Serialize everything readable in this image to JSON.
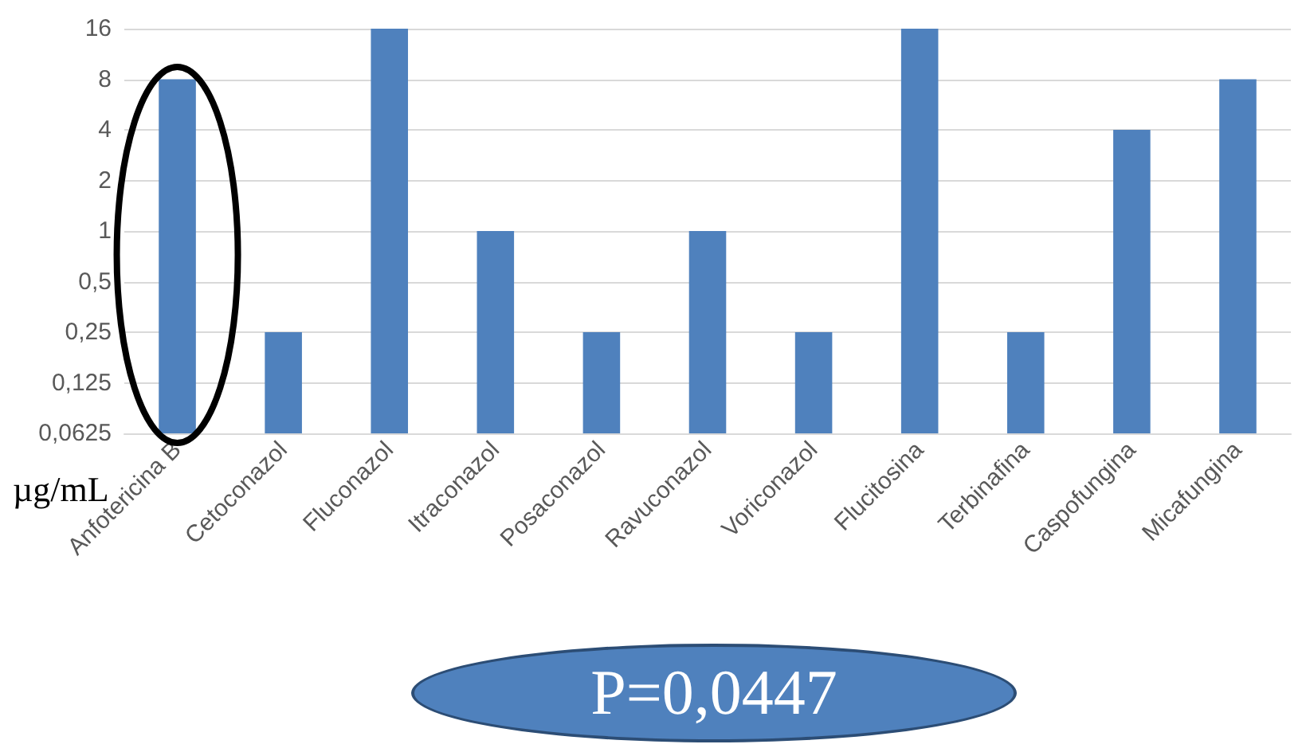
{
  "chart_data": {
    "type": "bar",
    "categories": [
      "Anfotericina B",
      "Cetoconazol",
      "Fluconazol",
      "Itraconazol",
      "Posaconazol",
      "Ravuconazol",
      "Voriconazol",
      "Flucitosina",
      "Terbinafina",
      "Caspofungina",
      "Micafungina"
    ],
    "values": [
      8,
      0.25,
      16,
      1,
      0.25,
      1,
      0.25,
      16,
      0.25,
      4,
      8
    ],
    "color": "#4f81bd",
    "ylabel": "µg/mL",
    "log": "y",
    "ylim": [
      0.0625,
      16
    ],
    "yticks": [
      {
        "value": 0.0625,
        "label": "0,0625"
      },
      {
        "value": 0.125,
        "label": "0,125"
      },
      {
        "value": 0.25,
        "label": "0,25"
      },
      {
        "value": 0.5,
        "label": "0,5"
      },
      1,
      2,
      4,
      8,
      16
    ],
    "grid": "y",
    "annotations": [
      "P=0,0447"
    ]
  }
}
